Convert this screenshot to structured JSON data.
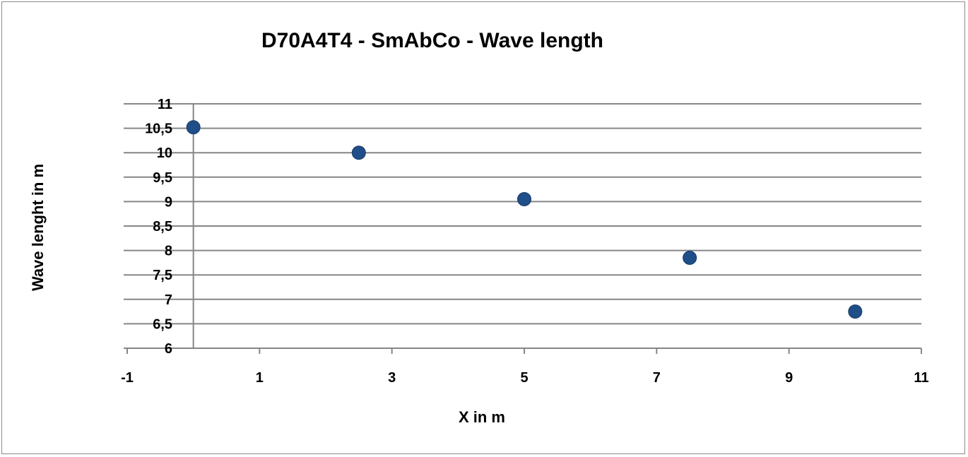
{
  "chart_data": {
    "type": "scatter",
    "title": "D70A4T4  - SmAbCo - Wave length",
    "xlabel": "X in m",
    "ylabel": "Wave lenght in m",
    "xlim": [
      -1,
      11
    ],
    "ylim": [
      6,
      11
    ],
    "x_ticks": [
      "-1",
      "1",
      "3",
      "5",
      "7",
      "9",
      "11"
    ],
    "y_ticks": [
      "6",
      "6,5",
      "7",
      "7,5",
      "8",
      "8,5",
      "9",
      "9,5",
      "10",
      "10,5",
      "11"
    ],
    "grid": "horizontal",
    "legend": "none",
    "marker_color": "#1f4e89",
    "gridline_color": "#868686",
    "points": [
      {
        "x": 0,
        "y": 10.52
      },
      {
        "x": 2.5,
        "y": 10.0
      },
      {
        "x": 5,
        "y": 9.05
      },
      {
        "x": 7.5,
        "y": 7.85
      },
      {
        "x": 10,
        "y": 6.75
      }
    ]
  }
}
